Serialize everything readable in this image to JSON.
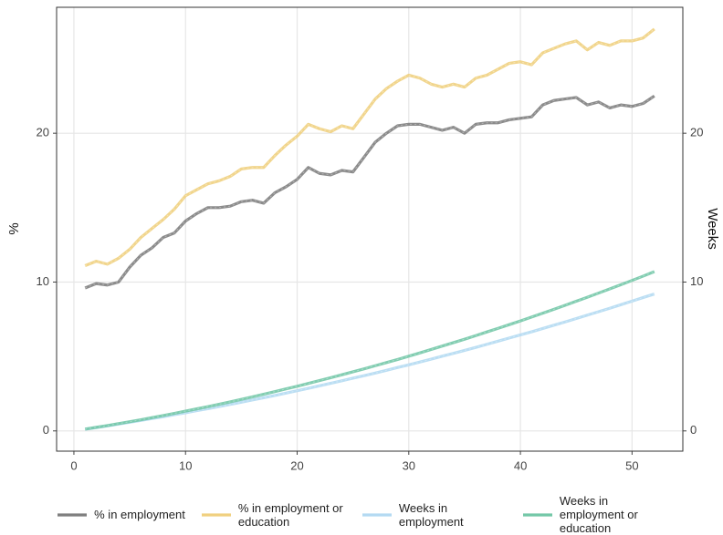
{
  "chart_data": {
    "type": "line",
    "x": [
      1,
      2,
      3,
      4,
      5,
      6,
      7,
      8,
      9,
      10,
      11,
      12,
      13,
      14,
      15,
      16,
      17,
      18,
      19,
      20,
      21,
      22,
      23,
      24,
      25,
      26,
      27,
      28,
      29,
      30,
      31,
      32,
      33,
      34,
      35,
      36,
      37,
      38,
      39,
      40,
      41,
      42,
      43,
      44,
      45,
      46,
      47,
      48,
      49,
      50,
      51,
      52
    ],
    "series": [
      {
        "name": "% in employment",
        "color": "#7f7f7f",
        "values": [
          9.6,
          9.9,
          9.8,
          10.0,
          11.0,
          11.8,
          12.3,
          13.0,
          13.3,
          14.1,
          14.6,
          15.0,
          15.0,
          15.1,
          15.4,
          15.5,
          15.3,
          16.0,
          16.4,
          16.9,
          17.7,
          17.3,
          17.2,
          17.5,
          17.4,
          18.4,
          19.4,
          20.0,
          20.5,
          20.6,
          20.6,
          20.4,
          20.2,
          20.4,
          20.0,
          20.6,
          20.7,
          20.7,
          20.9,
          21.0,
          21.1,
          21.9,
          22.2,
          22.3,
          22.4,
          21.9,
          22.1,
          21.7,
          21.9,
          21.8,
          22.0,
          22.5
        ]
      },
      {
        "name": "% in employment or education",
        "color": "#f0d080",
        "values": [
          11.1,
          11.4,
          11.2,
          11.6,
          12.2,
          13.0,
          13.6,
          14.2,
          14.9,
          15.8,
          16.2,
          16.6,
          16.8,
          17.1,
          17.6,
          17.7,
          17.7,
          18.5,
          19.2,
          19.8,
          20.6,
          20.3,
          20.1,
          20.5,
          20.3,
          21.3,
          22.3,
          23.0,
          23.5,
          23.9,
          23.7,
          23.3,
          23.1,
          23.3,
          23.1,
          23.7,
          23.9,
          24.3,
          24.7,
          24.8,
          24.6,
          25.4,
          25.7,
          26.0,
          26.2,
          25.6,
          26.1,
          25.9,
          26.2,
          26.2,
          26.4,
          27.0
        ]
      },
      {
        "name": "Weeks in employment",
        "color": "#b4daf2",
        "axis": "y2",
        "values": [
          0.11,
          0.22,
          0.34,
          0.46,
          0.58,
          0.7,
          0.83,
          0.95,
          1.09,
          1.22,
          1.36,
          1.49,
          1.64,
          1.78,
          1.93,
          2.08,
          2.23,
          2.38,
          2.54,
          2.7,
          2.86,
          3.03,
          3.2,
          3.37,
          3.54,
          3.71,
          3.89,
          4.07,
          4.26,
          4.44,
          4.63,
          4.82,
          5.02,
          5.21,
          5.41,
          5.61,
          5.82,
          6.03,
          6.24,
          6.45,
          6.66,
          6.88,
          7.1,
          7.32,
          7.55,
          7.78,
          8.01,
          8.24,
          8.48,
          8.72,
          8.96,
          9.2
        ]
      },
      {
        "name": "Weeks in employment or education",
        "color": "#74c8a8",
        "axis": "y2",
        "values": [
          0.12,
          0.24,
          0.36,
          0.49,
          0.62,
          0.75,
          0.89,
          1.03,
          1.18,
          1.33,
          1.48,
          1.63,
          1.79,
          1.95,
          2.12,
          2.29,
          2.46,
          2.64,
          2.82,
          3.0,
          3.19,
          3.38,
          3.57,
          3.77,
          3.97,
          4.17,
          4.38,
          4.59,
          4.8,
          5.02,
          5.24,
          5.47,
          5.7,
          5.93,
          6.16,
          6.4,
          6.65,
          6.89,
          7.14,
          7.39,
          7.65,
          7.91,
          8.17,
          8.44,
          8.71,
          8.98,
          9.26,
          9.54,
          9.82,
          10.11,
          10.4,
          10.7
        ]
      }
    ],
    "xlim": [
      -1.55,
      54.55
    ],
    "xticks": [
      0,
      10,
      20,
      30,
      40,
      50
    ],
    "ylim": [
      -1.36,
      28.46
    ],
    "yticks": [
      0,
      10,
      20
    ],
    "y2lim": [
      -1.36,
      28.46
    ],
    "y2ticks": [
      0,
      10,
      20
    ],
    "y_label": "%",
    "y2_label": "Weeks",
    "grid": true,
    "legend": "bottom"
  }
}
